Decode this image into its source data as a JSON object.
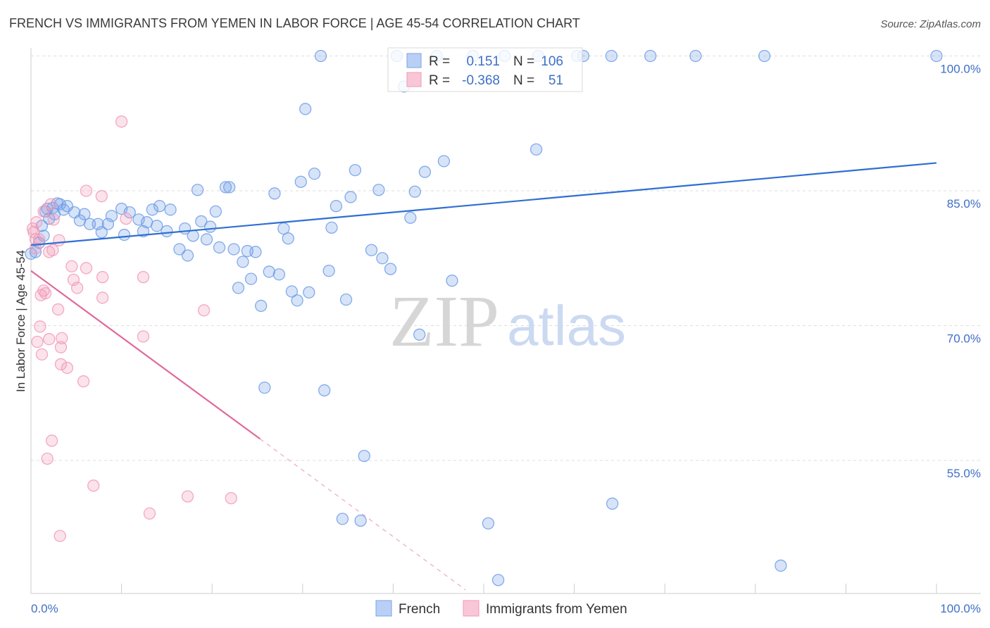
{
  "chart_data": {
    "type": "scatter",
    "title": "FRENCH VS IMMIGRANTS FROM YEMEN IN LABOR FORCE | AGE 45-54 CORRELATION CHART",
    "source": "Source: ZipAtlas.com",
    "xlabel": "",
    "ylabel": "In Labor Force | Age 45-54",
    "xlim": [
      0,
      100
    ],
    "ylim": [
      40.2,
      100.9
    ],
    "grid": true,
    "x_tick_values": [
      10,
      20,
      30,
      40,
      50,
      60,
      70,
      80,
      90,
      100
    ],
    "x_tick_labels": [
      "0.0%",
      "100.0%"
    ],
    "y_ticks": [
      {
        "value": 100,
        "label": "100.0%"
      },
      {
        "value": 85,
        "label": "85.0%"
      },
      {
        "value": 70,
        "label": "70.0%"
      },
      {
        "value": 55,
        "label": "55.0%"
      }
    ],
    "watermark": {
      "brand": "ZIP",
      "suffix": "atlas"
    },
    "series": [
      {
        "name": "French",
        "color": "#6f9de6",
        "line_color": "#2f6fd1",
        "r": "0.151",
        "n": "106",
        "trend": {
          "x": [
            0,
            100
          ],
          "y": [
            78.95,
            88.1
          ]
        },
        "points": [
          [
            32.0,
            100
          ],
          [
            40.4,
            100
          ],
          [
            44.8,
            100
          ],
          [
            48.8,
            100
          ],
          [
            52.3,
            100
          ],
          [
            56.0,
            100
          ],
          [
            60.3,
            100
          ],
          [
            61.0,
            100
          ],
          [
            64.1,
            100
          ],
          [
            68.4,
            100
          ],
          [
            73.4,
            100
          ],
          [
            81.0,
            100
          ],
          [
            100,
            100
          ],
          [
            41.2,
            96.6
          ],
          [
            30.3,
            94.1
          ],
          [
            55.8,
            89.6
          ],
          [
            45.6,
            88.3
          ],
          [
            35.8,
            87.3
          ],
          [
            31.3,
            86.9
          ],
          [
            43.5,
            87.1
          ],
          [
            29.8,
            86.0
          ],
          [
            21.5,
            85.4
          ],
          [
            21.9,
            85.4
          ],
          [
            18.4,
            85.1
          ],
          [
            26.9,
            84.7
          ],
          [
            38.4,
            85.1
          ],
          [
            42.4,
            84.9
          ],
          [
            35.3,
            84.3
          ],
          [
            33.7,
            83.3
          ],
          [
            20.4,
            82.7
          ],
          [
            41.9,
            82.0
          ],
          [
            33.2,
            80.9
          ],
          [
            27.9,
            80.8
          ],
          [
            28.4,
            79.7
          ],
          [
            14.2,
            83.3
          ],
          [
            13.4,
            82.9
          ],
          [
            15.4,
            82.9
          ],
          [
            10.0,
            83.0
          ],
          [
            10.9,
            82.6
          ],
          [
            8.9,
            82.2
          ],
          [
            5.9,
            82.4
          ],
          [
            4.8,
            82.6
          ],
          [
            5.4,
            81.7
          ],
          [
            6.5,
            81.3
          ],
          [
            7.4,
            81.3
          ],
          [
            8.5,
            81.3
          ],
          [
            11.9,
            81.8
          ],
          [
            12.8,
            81.5
          ],
          [
            13.9,
            81.1
          ],
          [
            15.0,
            80.5
          ],
          [
            17.0,
            80.8
          ],
          [
            18.8,
            81.6
          ],
          [
            19.8,
            81.0
          ],
          [
            17.9,
            80.0
          ],
          [
            19.4,
            79.6
          ],
          [
            12.4,
            80.5
          ],
          [
            10.3,
            80.1
          ],
          [
            7.8,
            80.4
          ],
          [
            20.8,
            78.7
          ],
          [
            16.4,
            78.5
          ],
          [
            17.3,
            77.8
          ],
          [
            22.4,
            78.5
          ],
          [
            23.9,
            78.3
          ],
          [
            24.8,
            78.2
          ],
          [
            23.4,
            77.1
          ],
          [
            37.6,
            78.4
          ],
          [
            38.8,
            77.5
          ],
          [
            39.7,
            76.3
          ],
          [
            32.9,
            76.1
          ],
          [
            26.3,
            76.0
          ],
          [
            27.4,
            75.7
          ],
          [
            24.3,
            75.2
          ],
          [
            46.5,
            75.0
          ],
          [
            22.9,
            74.2
          ],
          [
            28.8,
            73.8
          ],
          [
            30.7,
            73.7
          ],
          [
            29.4,
            72.8
          ],
          [
            34.8,
            72.9
          ],
          [
            25.4,
            72.2
          ],
          [
            42.9,
            69.0
          ],
          [
            25.8,
            63.1
          ],
          [
            32.4,
            62.8
          ],
          [
            36.8,
            55.5
          ],
          [
            64.2,
            50.2
          ],
          [
            34.4,
            48.5
          ],
          [
            36.4,
            48.3
          ],
          [
            50.5,
            48.0
          ],
          [
            82.8,
            43.3
          ],
          [
            51.6,
            41.7
          ],
          [
            2.4,
            83.1
          ],
          [
            3.2,
            83.5
          ],
          [
            4.0,
            83.3
          ],
          [
            1.6,
            82.7
          ],
          [
            2.0,
            81.9
          ],
          [
            1.2,
            81.1
          ],
          [
            1.4,
            80.0
          ],
          [
            0.9,
            79.2
          ],
          [
            0.5,
            78.2
          ],
          [
            0.0,
            78.0
          ],
          [
            2.6,
            82.4
          ],
          [
            1.8,
            83.0
          ],
          [
            3.6,
            82.9
          ],
          [
            2.9,
            83.6
          ]
        ]
      },
      {
        "name": "Immigrants from Yemen",
        "color": "#f29ab8",
        "line_color": "#e0699b",
        "r": "-0.368",
        "n": "51",
        "trend": {
          "x": [
            0,
            25.3
          ],
          "y": [
            76.1,
            57.4
          ]
        },
        "trend_extension": {
          "x": [
            25.3,
            48.0
          ],
          "y": [
            57.4,
            40.6
          ]
        },
        "points": [
          [
            10.0,
            92.7
          ],
          [
            6.1,
            85.0
          ],
          [
            7.8,
            84.4
          ],
          [
            2.2,
            83.5
          ],
          [
            1.4,
            82.7
          ],
          [
            0.6,
            81.5
          ],
          [
            2.5,
            81.8
          ],
          [
            10.5,
            81.9
          ],
          [
            0.3,
            80.4
          ],
          [
            0.9,
            79.6
          ],
          [
            3.1,
            79.5
          ],
          [
            0.5,
            78.6
          ],
          [
            2.0,
            78.2
          ],
          [
            2.4,
            78.4
          ],
          [
            4.5,
            76.6
          ],
          [
            6.1,
            76.4
          ],
          [
            7.9,
            75.4
          ],
          [
            12.4,
            75.4
          ],
          [
            4.7,
            75.1
          ],
          [
            5.1,
            74.2
          ],
          [
            1.4,
            73.9
          ],
          [
            1.6,
            73.6
          ],
          [
            1.1,
            73.4
          ],
          [
            7.9,
            73.1
          ],
          [
            3.0,
            71.8
          ],
          [
            19.1,
            71.7
          ],
          [
            1.0,
            69.9
          ],
          [
            12.4,
            68.8
          ],
          [
            3.4,
            68.6
          ],
          [
            2.0,
            68.5
          ],
          [
            0.7,
            68.2
          ],
          [
            3.3,
            67.6
          ],
          [
            1.2,
            66.8
          ],
          [
            3.3,
            65.7
          ],
          [
            4.0,
            65.3
          ],
          [
            5.8,
            63.8
          ],
          [
            2.3,
            57.2
          ],
          [
            1.8,
            55.2
          ],
          [
            6.9,
            52.2
          ],
          [
            17.3,
            51.0
          ],
          [
            22.1,
            50.8
          ],
          [
            13.1,
            49.1
          ],
          [
            3.2,
            46.6
          ],
          [
            0.2,
            80.8
          ],
          [
            0.5,
            79.6
          ]
        ]
      }
    ]
  },
  "legend": {
    "r_label": "R =",
    "n_label": "N ="
  }
}
